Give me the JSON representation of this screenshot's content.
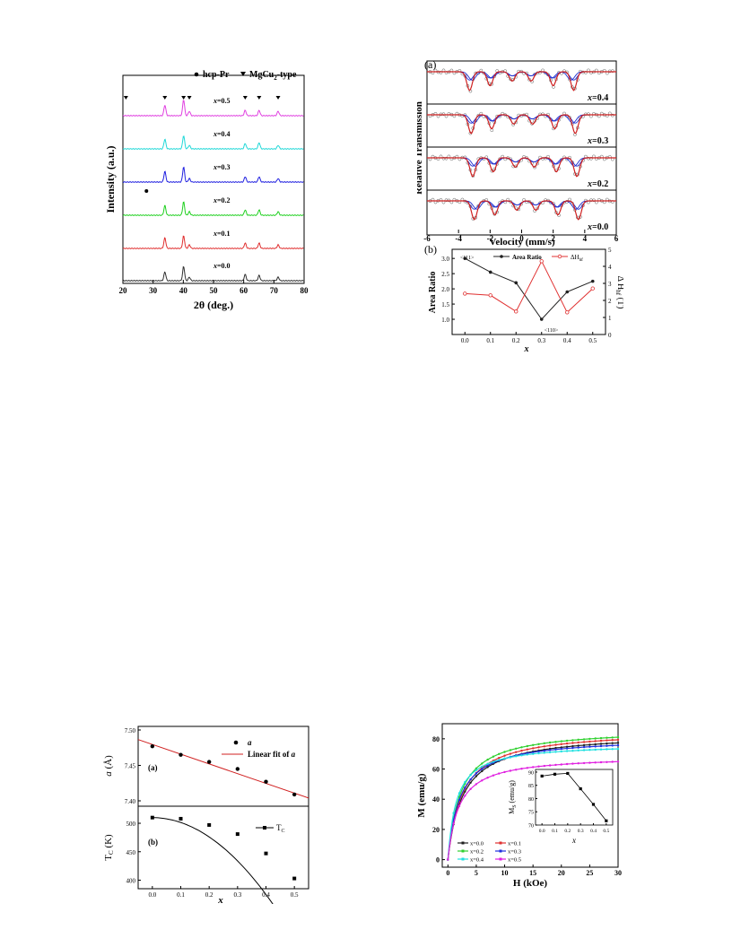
{
  "chart_data": [
    {
      "id": "xrd",
      "type": "line",
      "xlabel": "2θ (deg.)",
      "ylabel": "Intensity (a.u.)",
      "xlim": [
        20,
        80
      ],
      "xticks": [
        "20",
        "30",
        "40",
        "50",
        "60",
        "70",
        "80"
      ],
      "legend": {
        "dot_label": "hcp-Pr",
        "tri_label": "MgCu",
        "tri_sub": "2",
        "tri_tail": "-type"
      },
      "series": [
        {
          "name": "x=0.5",
          "var": "x",
          "val": "=0.5",
          "color": "#e040e0"
        },
        {
          "name": "x=0.4",
          "var": "x",
          "val": "=0.4",
          "color": "#20d8d8"
        },
        {
          "name": "x=0.3",
          "var": "x",
          "val": "=0.3",
          "color": "#2020e0"
        },
        {
          "name": "x=0.2",
          "var": "x",
          "val": "=0.2",
          "color": "#20d020"
        },
        {
          "name": "x=0.1",
          "var": "x",
          "val": "=0.1",
          "color": "#e03030"
        },
        {
          "name": "x=0.0",
          "var": "x",
          "val": "=0.0",
          "color": "#303030"
        }
      ],
      "peaks_2theta": [
        33.9,
        40.1,
        42.0,
        60.5,
        65.1,
        71.4
      ],
      "triangle_markers_2theta": [
        21.0,
        33.9,
        40.1,
        42.0,
        60.5,
        65.1,
        71.4
      ],
      "dot_marker_2theta": 27.8
    },
    {
      "id": "mossbauer",
      "type": "line",
      "panel_label": "(a)",
      "xlabel": "Velocity (mm/s)",
      "ylabel": "Relative Transmission",
      "xlim": [
        -6,
        6
      ],
      "xticks": [
        "-6",
        "-4",
        "-2",
        "0",
        "2",
        "4",
        "6"
      ],
      "panels": [
        {
          "var": "x",
          "val": "=0.4"
        },
        {
          "var": "x",
          "val": "=0.3"
        },
        {
          "var": "x",
          "val": "=0.2"
        },
        {
          "var": "x",
          "val": "=0.0"
        }
      ],
      "line_positions_mm_s": [
        -3.3,
        -2.0,
        -0.6,
        0.6,
        2.0,
        3.3
      ],
      "colors": {
        "fit": "#d02020",
        "sub": "#2030d0",
        "data": "#606060"
      }
    },
    {
      "id": "area-ratio",
      "type": "line",
      "panel_label": "(b)",
      "xlabel": "x",
      "ylabel_left": "Area Ratio",
      "ylabel_right": "Δ H",
      "ylabel_right_sub": "hf",
      "ylabel_right_unit": " (T)",
      "ylim_left": [
        0.5,
        3.3
      ],
      "ylim_right": [
        0,
        5
      ],
      "yticks_left": [
        "1.0",
        "1.5",
        "2.0",
        "2.5",
        "3.0"
      ],
      "yticks_right": [
        "0",
        "1",
        "2",
        "3",
        "4",
        "5"
      ],
      "xticks": [
        "0.0",
        "0.1",
        "0.2",
        "0.3",
        "0.4",
        "0.5"
      ],
      "x": [
        0.0,
        0.1,
        0.2,
        0.3,
        0.4,
        0.5
      ],
      "series": [
        {
          "name": "Area Ratio",
          "axis": "left",
          "color": "#202020",
          "values": [
            3.0,
            2.55,
            2.2,
            1.0,
            1.9,
            2.25
          ]
        },
        {
          "name": "ΔH",
          "name_sub": "hf",
          "axis": "right",
          "color": "#e03030",
          "values": [
            2.4,
            2.3,
            1.35,
            4.3,
            1.3,
            2.7
          ]
        }
      ],
      "annotations": {
        "top": "<111>",
        "bottom": "<110>"
      }
    },
    {
      "id": "lattice",
      "type": "scatter",
      "panel_label": "(a)",
      "ylabel": "a (Å)",
      "ylabel_var": "a",
      "ylabel_unit": " (Å)",
      "ylim": [
        7.4,
        7.5
      ],
      "yticks": [
        "7.40",
        "7.45",
        "7.50"
      ],
      "x": [
        0.0,
        0.1,
        0.2,
        0.3,
        0.4,
        0.5
      ],
      "values": [
        7.477,
        7.465,
        7.455,
        7.445,
        7.427,
        7.409
      ],
      "fit": {
        "x": [
          -0.05,
          0.55
        ],
        "y": [
          7.4865,
          7.404
        ]
      },
      "legend": {
        "data": "a",
        "fit_prefix": "Linear fit of ",
        "fit_var": "a"
      }
    },
    {
      "id": "curie",
      "type": "line",
      "panel_label": "(b)",
      "xlabel": "x",
      "ylabel_main": "T",
      "ylabel_sub": "C",
      "ylabel_unit": " (K)",
      "ylim": [
        385,
        530
      ],
      "yticks": [
        "400",
        "450",
        "500"
      ],
      "xticks": [
        "0.0",
        "0.1",
        "0.2",
        "0.3",
        "0.4",
        "0.5"
      ],
      "x": [
        0.0,
        0.1,
        0.2,
        0.3,
        0.4,
        0.5
      ],
      "values": [
        510,
        508,
        497,
        481,
        447,
        403
      ],
      "legend": {
        "main": "T",
        "sub": "C"
      }
    },
    {
      "id": "magnetization",
      "type": "line",
      "xlabel": "H (kOe)",
      "ylabel": "M (emu/g)",
      "xlim": [
        -1,
        30
      ],
      "ylim": [
        -5,
        90
      ],
      "xticks": [
        "0",
        "5",
        "10",
        "15",
        "20",
        "25",
        "30"
      ],
      "yticks": [
        "0",
        "20",
        "40",
        "60",
        "80"
      ],
      "series": [
        {
          "name": "x=0.0",
          "color": "#202020",
          "ms": 84,
          "k": 2.6
        },
        {
          "name": "x=0.1",
          "color": "#e03030",
          "ms": 86,
          "k": 2.5
        },
        {
          "name": "x=0.2",
          "color": "#30d030",
          "ms": 87,
          "k": 2.2
        },
        {
          "name": "x=0.3",
          "color": "#2030e0",
          "ms": 81,
          "k": 2.1
        },
        {
          "name": "x=0.4",
          "color": "#20e0e0",
          "ms": 77,
          "k": 1.5
        },
        {
          "name": "x=0.5",
          "color": "#e020e0",
          "ms": 69,
          "k": 1.9
        }
      ],
      "inset": {
        "xlabel": "x",
        "ylabel_main": "M",
        "ylabel_sub": "S",
        "ylabel_unit": " (emu/g)",
        "ylim": [
          70,
          90
        ],
        "yticks": [
          "70",
          "75",
          "80",
          "85",
          "90"
        ],
        "xticks": [
          "0.0",
          "0.1",
          "0.2",
          "0.3",
          "0.4",
          "0.5"
        ],
        "x": [
          0.0,
          0.1,
          0.2,
          0.3,
          0.4,
          0.5
        ],
        "values": [
          88.5,
          89.2,
          89.5,
          83.7,
          77.8,
          71.6
        ]
      }
    }
  ]
}
